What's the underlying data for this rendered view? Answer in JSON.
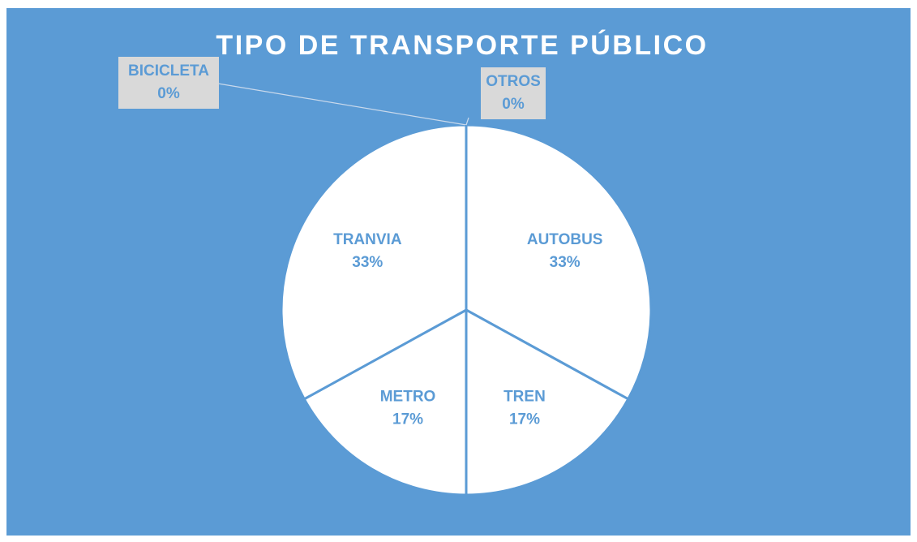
{
  "chart_data": {
    "type": "pie",
    "title": "TIPO DE TRANSPORTE PÚBLICO",
    "categories": [
      "AUTOBUS",
      "TREN",
      "METRO",
      "TRANVIA",
      "BICICLETA",
      "OTROS"
    ],
    "values": [
      33,
      17,
      17,
      33,
      0,
      0
    ],
    "value_labels": [
      "33%",
      "17%",
      "17%",
      "33%",
      "0%",
      "0%"
    ],
    "color": "#ffffff",
    "background": "#5b9bd5"
  }
}
